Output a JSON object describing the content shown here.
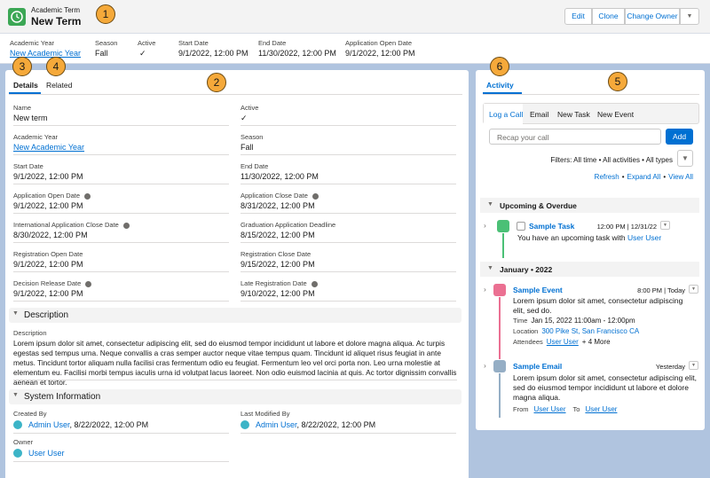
{
  "callouts": [
    "1",
    "2",
    "3",
    "4",
    "5",
    "6"
  ],
  "header": {
    "object_type": "Academic Term",
    "title": "New Term",
    "buttons": [
      "Edit",
      "Clone",
      "Change Owner"
    ]
  },
  "highlights": [
    {
      "label": "Academic Year",
      "value": "New Academic Year",
      "link": true
    },
    {
      "label": "Season",
      "value": "Fall"
    },
    {
      "label": "Active",
      "value": "✓"
    },
    {
      "label": "Start Date",
      "value": "9/1/2022, 12:00 PM"
    },
    {
      "label": "End Date",
      "value": "11/30/2022, 12:00 PM"
    },
    {
      "label": "Application Open Date",
      "value": "9/1/2022, 12:00 PM"
    }
  ],
  "tabs": [
    "Details",
    "Related"
  ],
  "fields": [
    {
      "label": "Name",
      "value": "New term"
    },
    {
      "label": "Active",
      "value": "✓"
    },
    {
      "label": "Academic Year",
      "value": "New Academic Year",
      "link": true
    },
    {
      "label": "Season",
      "value": "Fall"
    },
    {
      "label": "Start Date",
      "value": "9/1/2022, 12:00 PM"
    },
    {
      "label": "End Date",
      "value": "11/30/2022, 12:00 PM"
    },
    {
      "label": "Application Open Date",
      "value": "9/1/2022, 12:00 PM",
      "info": true
    },
    {
      "label": "Application Close Date",
      "value": "8/31/2022, 12:00 PM",
      "info": true
    },
    {
      "label": "International Application Close Date",
      "value": "8/30/2022, 12:00 PM",
      "info": true
    },
    {
      "label": "Graduation Application Deadline",
      "value": "8/15/2022, 12:00 PM"
    },
    {
      "label": "Registration Open Date",
      "value": "9/1/2022, 12:00 PM"
    },
    {
      "label": "Registration Close Date",
      "value": "9/15/2022, 12:00 PM"
    },
    {
      "label": "Decision Release Date",
      "value": "9/1/2022, 12:00 PM",
      "info": true
    },
    {
      "label": "Late Registration Date",
      "value": "9/10/2022, 12:00 PM",
      "info": true
    }
  ],
  "description": {
    "section": "Description",
    "label": "Description",
    "text": "Lorem ipsum dolor sit amet, consectetur adipiscing elit, sed do eiusmod tempor incididunt ut labore et dolore magna aliqua. Ac turpis egestas sed tempus urna. Neque convallis a cras semper auctor neque vitae tempus quam. Tincidunt id aliquet risus feugiat in ante metus. Tincidunt tortor aliquam nulla facilisi cras fermentum odio eu feugiat. Fermentum leo vel orci porta non. Leo urna molestie at elementum eu. Facilisi morbi tempus iaculis urna id volutpat lacus laoreet. Non odio euismod lacinia at quis. Ac tortor dignissim convallis aenean et tortor."
  },
  "system_information": {
    "section": "System Information",
    "fields": [
      {
        "label": "Created By",
        "user": "Admin User",
        "suffix": ", 8/22/2022, 12:00 PM"
      },
      {
        "label": "Last Modified By",
        "user": "Admin User",
        "suffix": ", 8/22/2022, 12:00 PM"
      },
      {
        "label": "Owner",
        "user": "User User"
      }
    ]
  },
  "activity": {
    "tab": "Activity",
    "subtabs": [
      "Log a Call",
      "Email",
      "New Task",
      "New Event"
    ],
    "placeholder": "Recap your call",
    "add": "Add",
    "filters": "Filters: All time • All activities • All types",
    "actions": [
      "Refresh",
      "Expand All",
      "View All"
    ],
    "separator": "•",
    "upcoming": {
      "section": "Upcoming & Overdue",
      "task": {
        "title": "Sample Task",
        "date": "12:00 PM | 12/31/22",
        "text": "You have an upcoming task with",
        "user": "User User"
      }
    },
    "month": {
      "section": "January • 2022",
      "event": {
        "title": "Sample Event",
        "date": "8:00 PM | Today",
        "text": "Lorem ipsum dolor sit amet, consectetur adipiscing elit, sed do.",
        "time_label": "Time",
        "time": "Jan 15, 2022  11:00am - 12:00pm",
        "location_label": "Location",
        "location": "300 Pike St, San Francisco CA",
        "attendees_label": "Attendees",
        "attendee": "User User",
        "more": "+ 4 More"
      },
      "email": {
        "title": "Sample Email",
        "date": "Yesterday",
        "text": "Lorem ipsum dolor sit amet, consectetur adipiscing elit, sed do eiusmod tempor incididunt ut labore et dolore magna aliqua.",
        "from_label": "From",
        "from": "User User",
        "to_label": "To",
        "to": "User User"
      }
    }
  }
}
